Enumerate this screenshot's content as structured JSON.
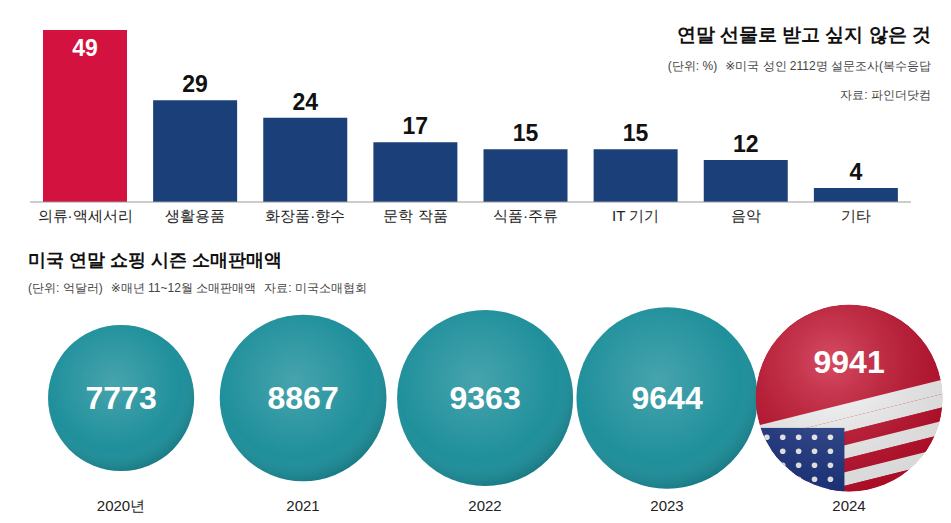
{
  "chart_data": [
    {
      "type": "bar",
      "title": "연말 선물로 받고 싶지 않은 것",
      "subtitle": "(단위: %)",
      "note": "※미국 성인 2112명 설문조사(복수응답",
      "source": "자료: 파인더닷컴",
      "categories": [
        "의류·액세서리",
        "생활용품",
        "화장품·향수",
        "문학 작품",
        "식품·주류",
        "IT 기기",
        "음악",
        "기타"
      ],
      "values": [
        49,
        29,
        24,
        17,
        15,
        15,
        12,
        4
      ],
      "colors": [
        "#d4123f",
        "#1b3f78",
        "#1b3f78",
        "#1b3f78",
        "#1b3f78",
        "#1b3f78",
        "#1b3f78",
        "#1b3f78"
      ],
      "ylim": [
        0,
        49
      ],
      "grid": false,
      "data_labels": true,
      "tick_labels": "x"
    },
    {
      "type": "bubble",
      "title": "미국 연말 쇼핑 시즌 소매판매액",
      "subtitle": "(단위: 억달러)",
      "note": "※매년 11~12월 소매판매액",
      "source": "자료: 미국소매협회",
      "categories": [
        "2020년",
        "2021",
        "2022",
        "2023",
        "2024"
      ],
      "values": [
        7773,
        8867,
        9363,
        9644,
        9941
      ],
      "colors": [
        "#138a96",
        "#138a96",
        "#138a96",
        "#138a96",
        "#c8102e"
      ],
      "ylim": [
        0,
        10000
      ],
      "grid": false,
      "data_labels": true,
      "tick_labels": "x"
    }
  ]
}
